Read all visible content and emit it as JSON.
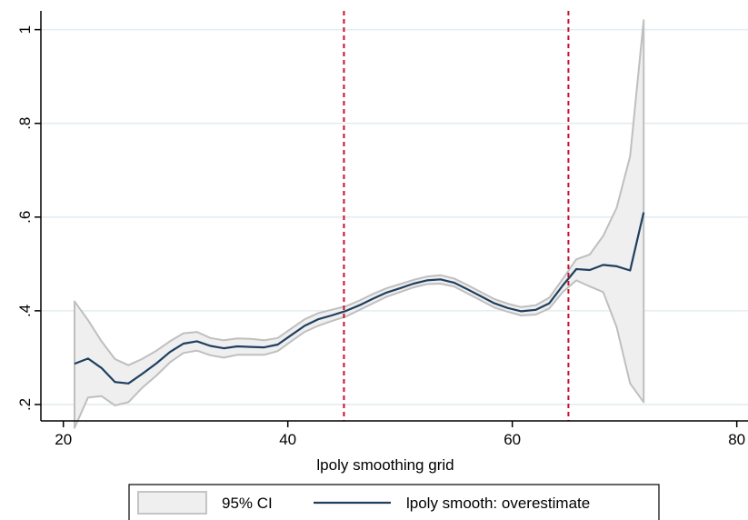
{
  "chart_data": {
    "type": "line",
    "title": "",
    "xlabel": "lpoly smoothing grid",
    "ylabel": "",
    "xlim": [
      18,
      81
    ],
    "ylim": [
      0.165,
      1.04
    ],
    "x_ticks": [
      {
        "value": 20,
        "label": "20"
      },
      {
        "value": 40,
        "label": "40"
      },
      {
        "value": 60,
        "label": "60"
      },
      {
        "value": 80,
        "label": "80"
      }
    ],
    "y_ticks": [
      {
        "value": 0.2,
        "label": ".2"
      },
      {
        "value": 0.4,
        "label": ".4"
      },
      {
        "value": 0.6,
        "label": ".6"
      },
      {
        "value": 0.8,
        "label": ".8"
      },
      {
        "value": 1.0,
        "label": "1"
      }
    ],
    "grid": true,
    "vlines": [
      45,
      65
    ],
    "legend": {
      "placement": "bottom"
    },
    "series": [
      {
        "name": "95% CI",
        "kind": "band",
        "color": "#bfbfbf",
        "fill": "#efefef",
        "x": [
          21,
          22.2,
          23.4,
          24.6,
          25.8,
          27,
          28.3,
          29.5,
          30.7,
          31.9,
          33.1,
          34.3,
          35.5,
          36.7,
          37.9,
          39.1,
          40.3,
          41.5,
          42.7,
          43.9,
          45.2,
          46.4,
          47.6,
          48.8,
          50,
          51.2,
          52.4,
          53.6,
          54.8,
          56,
          57.2,
          58.4,
          59.6,
          60.8,
          62.1,
          63.3,
          64.5,
          65.7,
          66.9,
          68.1,
          69.3,
          70.5,
          71.7
        ],
        "upper": [
          0.42,
          0.38,
          0.335,
          0.297,
          0.284,
          0.297,
          0.315,
          0.335,
          0.352,
          0.355,
          0.342,
          0.337,
          0.341,
          0.34,
          0.337,
          0.342,
          0.362,
          0.382,
          0.395,
          0.402,
          0.41,
          0.422,
          0.436,
          0.448,
          0.457,
          0.466,
          0.473,
          0.476,
          0.469,
          0.455,
          0.44,
          0.425,
          0.415,
          0.408,
          0.412,
          0.428,
          0.468,
          0.51,
          0.52,
          0.56,
          0.62,
          0.73,
          1.02
        ],
        "lower": [
          0.15,
          0.215,
          0.218,
          0.198,
          0.205,
          0.235,
          0.262,
          0.29,
          0.31,
          0.315,
          0.305,
          0.3,
          0.306,
          0.306,
          0.306,
          0.314,
          0.335,
          0.355,
          0.368,
          0.378,
          0.388,
          0.402,
          0.416,
          0.43,
          0.44,
          0.45,
          0.457,
          0.458,
          0.452,
          0.437,
          0.422,
          0.407,
          0.398,
          0.39,
          0.392,
          0.405,
          0.44,
          0.465,
          0.452,
          0.44,
          0.365,
          0.245,
          0.205
        ]
      },
      {
        "name": "lpoly smooth: overestimate",
        "kind": "line",
        "color": "#1f3f5f",
        "x": [
          21,
          22.2,
          23.4,
          24.6,
          25.8,
          27,
          28.3,
          29.5,
          30.7,
          31.9,
          33.1,
          34.3,
          35.5,
          36.7,
          37.9,
          39.1,
          40.3,
          41.5,
          42.7,
          43.9,
          45.2,
          46.4,
          47.6,
          48.8,
          50,
          51.2,
          52.4,
          53.6,
          54.8,
          56,
          57.2,
          58.4,
          59.6,
          60.8,
          62.1,
          63.3,
          64.5,
          65.7,
          66.9,
          68.1,
          69.3,
          70.5,
          71.7
        ],
        "values": [
          0.287,
          0.298,
          0.278,
          0.248,
          0.245,
          0.265,
          0.288,
          0.312,
          0.33,
          0.335,
          0.325,
          0.32,
          0.324,
          0.323,
          0.322,
          0.328,
          0.348,
          0.368,
          0.382,
          0.39,
          0.4,
          0.412,
          0.426,
          0.439,
          0.448,
          0.458,
          0.465,
          0.467,
          0.46,
          0.446,
          0.431,
          0.416,
          0.406,
          0.399,
          0.402,
          0.416,
          0.454,
          0.489,
          0.487,
          0.498,
          0.495,
          0.486,
          0.61
        ]
      }
    ],
    "colors": {
      "grid": "#e3edf1",
      "vline": "#c8102e",
      "axis": "#000000"
    }
  }
}
